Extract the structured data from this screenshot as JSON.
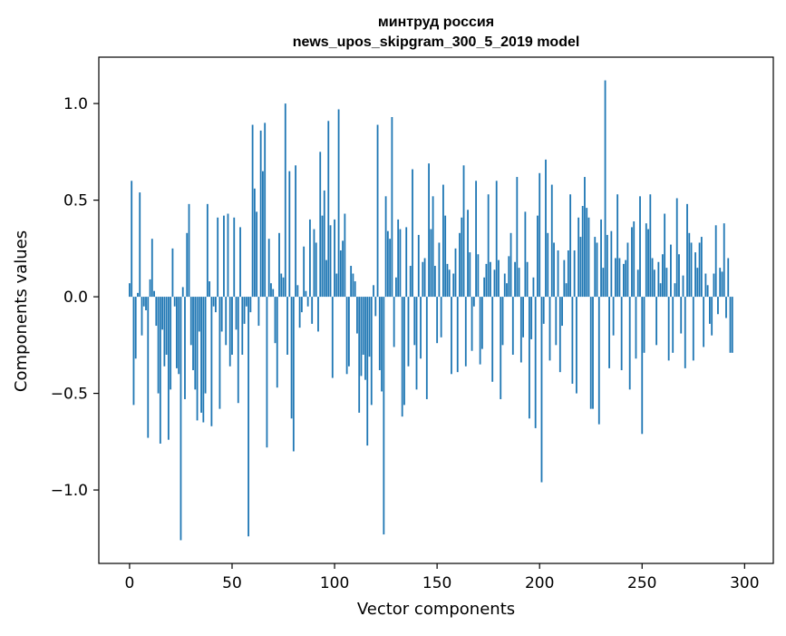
{
  "colors": {
    "bar": "#1f77b4",
    "axis": "#000000",
    "background": "#ffffff"
  },
  "chart_data": {
    "type": "bar",
    "title_line1": "минтруд россия",
    "title_line2": "news_upos_skipgram_300_5_2019 model",
    "xlabel": "Vector components",
    "ylabel": "Components values",
    "xlim": [
      -15,
      314
    ],
    "ylim": [
      -1.38,
      1.24
    ],
    "x_ticks": [
      0,
      50,
      100,
      150,
      200,
      250,
      300
    ],
    "x_tick_labels": [
      "0",
      "50",
      "100",
      "150",
      "200",
      "250",
      "300"
    ],
    "y_ticks": [
      -1.0,
      -0.5,
      0.0,
      0.5,
      1.0
    ],
    "y_tick_labels": [
      "−1.0",
      "−0.5",
      "0.0",
      "0.5",
      "1.0"
    ],
    "values": [
      0.07,
      0.6,
      -0.56,
      -0.32,
      0.02,
      0.54,
      -0.2,
      -0.05,
      -0.07,
      -0.73,
      0.09,
      0.3,
      0.03,
      -0.15,
      -0.5,
      -0.76,
      -0.17,
      -0.36,
      -0.3,
      -0.74,
      -0.48,
      0.25,
      -0.05,
      -0.37,
      -0.4,
      -1.26,
      0.05,
      -0.53,
      0.33,
      0.48,
      -0.25,
      -0.38,
      -0.48,
      -0.64,
      -0.18,
      -0.6,
      -0.65,
      -0.5,
      0.48,
      0.08,
      -0.67,
      -0.05,
      -0.08,
      0.41,
      -0.58,
      -0.18,
      0.42,
      -0.25,
      0.43,
      -0.36,
      -0.3,
      0.41,
      -0.17,
      -0.55,
      0.36,
      -0.3,
      -0.14,
      -0.05,
      -1.24,
      -0.08,
      0.89,
      0.56,
      0.44,
      -0.15,
      0.86,
      0.65,
      0.9,
      -0.78,
      0.3,
      0.07,
      0.04,
      -0.24,
      -0.47,
      0.33,
      0.12,
      0.1,
      1.0,
      -0.3,
      0.65,
      -0.63,
      -0.8,
      0.68,
      0.06,
      -0.16,
      -0.08,
      0.26,
      0.03,
      -0.05,
      0.4,
      -0.14,
      0.35,
      0.28,
      -0.18,
      0.75,
      0.42,
      0.55,
      0.19,
      0.91,
      0.37,
      -0.42,
      0.4,
      0.12,
      0.97,
      0.24,
      0.29,
      0.43,
      -0.4,
      -0.36,
      0.16,
      0.12,
      0.08,
      -0.19,
      -0.6,
      -0.41,
      -0.3,
      -0.43,
      -0.77,
      -0.31,
      -0.56,
      0.06,
      -0.1,
      0.89,
      -0.38,
      -0.49,
      -1.23,
      0.52,
      0.34,
      0.3,
      0.93,
      -0.26,
      0.1,
      0.4,
      0.35,
      -0.62,
      -0.56,
      0.36,
      -0.36,
      0.16,
      0.66,
      -0.25,
      -0.48,
      0.32,
      -0.32,
      0.18,
      0.2,
      -0.53,
      0.69,
      0.35,
      0.52,
      0.16,
      -0.24,
      0.28,
      -0.21,
      0.58,
      0.42,
      0.17,
      0.14,
      -0.4,
      0.12,
      0.25,
      -0.39,
      0.33,
      0.41,
      0.68,
      -0.36,
      0.45,
      0.23,
      -0.28,
      -0.05,
      0.6,
      0.22,
      -0.35,
      -0.27,
      0.1,
      0.17,
      0.53,
      0.18,
      -0.44,
      0.14,
      0.6,
      0.19,
      -0.53,
      -0.25,
      0.12,
      0.07,
      0.21,
      0.33,
      -0.3,
      0.18,
      0.62,
      0.15,
      -0.34,
      -0.21,
      0.44,
      0.18,
      -0.63,
      -0.22,
      0.1,
      -0.68,
      0.42,
      0.64,
      -0.96,
      -0.14,
      0.71,
      0.33,
      -0.33,
      0.58,
      0.28,
      -0.25,
      0.24,
      -0.39,
      -0.15,
      0.19,
      0.07,
      0.24,
      0.53,
      -0.45,
      0.24,
      -0.5,
      0.41,
      0.31,
      0.47,
      0.62,
      0.46,
      0.41,
      -0.58,
      -0.58,
      0.31,
      0.28,
      -0.66,
      0.4,
      0.15,
      1.12,
      0.32,
      -0.37,
      0.34,
      -0.2,
      0.2,
      0.53,
      0.2,
      -0.38,
      0.17,
      0.19,
      0.28,
      -0.48,
      0.36,
      0.39,
      -0.32,
      0.14,
      0.52,
      -0.71,
      -0.29,
      0.38,
      0.35,
      0.53,
      0.2,
      0.14,
      -0.25,
      0.18,
      0.07,
      0.22,
      0.43,
      0.15,
      -0.33,
      0.27,
      -0.29,
      0.07,
      0.51,
      0.22,
      -0.19,
      0.11,
      -0.37,
      0.48,
      0.33,
      0.28,
      -0.33,
      0.23,
      0.15,
      0.28,
      0.31,
      -0.26,
      0.12,
      0.06,
      -0.14,
      -0.2,
      0.12,
      0.37,
      -0.09,
      0.15,
      0.13,
      0.38,
      -0.11,
      0.2,
      -0.29,
      -0.29
    ]
  }
}
